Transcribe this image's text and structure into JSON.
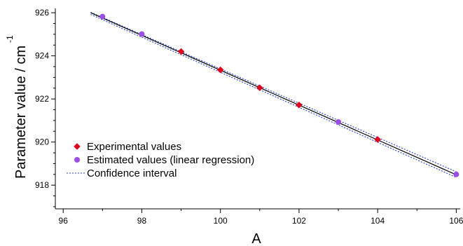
{
  "chart_data": {
    "type": "scatter",
    "title": "",
    "xlabel": "A",
    "ylabel": "Parameter value / cm",
    "ylabel_superscript": "-1",
    "xlim": [
      95.8,
      106.1
    ],
    "ylim": [
      916.9,
      926.2
    ],
    "xticks": [
      96,
      98,
      100,
      102,
      104,
      106
    ],
    "yticks": [
      918,
      920,
      922,
      924,
      926
    ],
    "grid": false,
    "legend_position": "bottom-left",
    "series": [
      {
        "name": "Experimental values",
        "marker": "diamond",
        "color": "#e0001b",
        "x": [
          99,
          100,
          101,
          102,
          104
        ],
        "y": [
          924.2,
          923.35,
          922.52,
          921.72,
          920.12
        ]
      },
      {
        "name": "Estimated values (linear regression)",
        "marker": "circle",
        "color": "#9b4ee6",
        "x": [
          97,
          98,
          103,
          106
        ],
        "y": [
          925.82,
          925.01,
          920.93,
          918.5
        ]
      },
      {
        "name": "Confidence interval",
        "line_style": "dotted",
        "color": "#1f3fd0",
        "upper": {
          "x": [
            96.7,
            106
          ],
          "y": [
            926.02,
            918.62
          ]
        },
        "lower": {
          "x": [
            96.7,
            106
          ],
          "y": [
            925.92,
            918.36
          ]
        }
      }
    ],
    "regression_line": {
      "color": "#000000",
      "x": [
        96.7,
        106
      ],
      "y": [
        926.0,
        918.48
      ]
    }
  }
}
